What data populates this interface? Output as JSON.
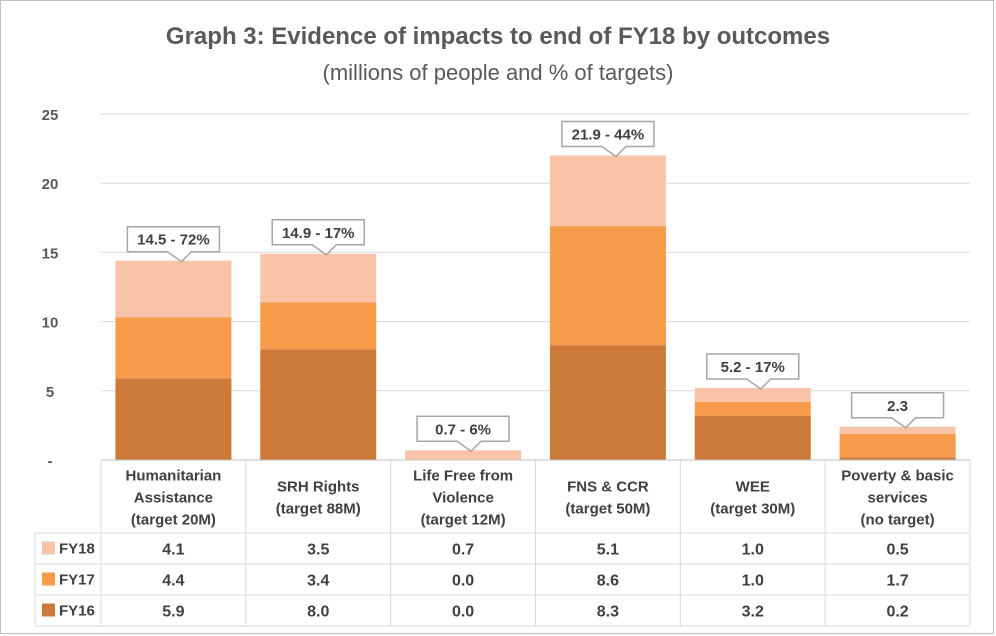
{
  "chart_data": {
    "type": "bar",
    "stacked": true,
    "title": "Graph 3: Evidence of impacts to end of FY18 by outcomes",
    "subtitle": "(millions of people and % of targets)",
    "ylim": [
      0,
      25
    ],
    "yticks": [
      0,
      5,
      10,
      15,
      20,
      25
    ],
    "ytick_labels": [
      "-",
      "5",
      "10",
      "15",
      "20",
      "25"
    ],
    "grid": true,
    "legend": "data-table",
    "categories": [
      [
        "Humanitarian",
        "Assistance",
        "(target 20M)"
      ],
      [
        "SRH Rights",
        "(target 88M)"
      ],
      [
        "Life Free from",
        "Violence",
        "(target 12M)"
      ],
      [
        "FNS & CCR",
        "(target 50M)"
      ],
      [
        "WEE",
        "(target 30M)"
      ],
      [
        "Poverty & basic",
        "services",
        "(no target)"
      ]
    ],
    "series": [
      {
        "name": "FY16",
        "color": "#cc7a3a",
        "values": [
          5.9,
          8.0,
          0.0,
          8.3,
          3.2,
          0.2
        ],
        "labels": [
          "5.9",
          "8.0",
          "0.0",
          "8.3",
          "3.2",
          "0.2"
        ]
      },
      {
        "name": "FY17",
        "color": "#f79a4a",
        "values": [
          4.4,
          3.4,
          0.0,
          8.6,
          1.0,
          1.7
        ],
        "labels": [
          "4.4",
          "3.4",
          "0.0",
          "8.6",
          "1.0",
          "1.7"
        ]
      },
      {
        "name": "FY18",
        "color": "#f9c3a8",
        "values": [
          4.1,
          3.5,
          0.7,
          5.1,
          1.0,
          0.5
        ],
        "labels": [
          "4.1",
          "3.5",
          "0.7",
          "5.1",
          "1.0",
          "0.5"
        ]
      }
    ],
    "table_order": [
      "FY18",
      "FY17",
      "FY16"
    ],
    "annotations": [
      "14.5 - 72%",
      "14.9 - 17%",
      "0.7 - 6%",
      "21.9 - 44%",
      "5.2 - 17%",
      "2.3"
    ]
  }
}
